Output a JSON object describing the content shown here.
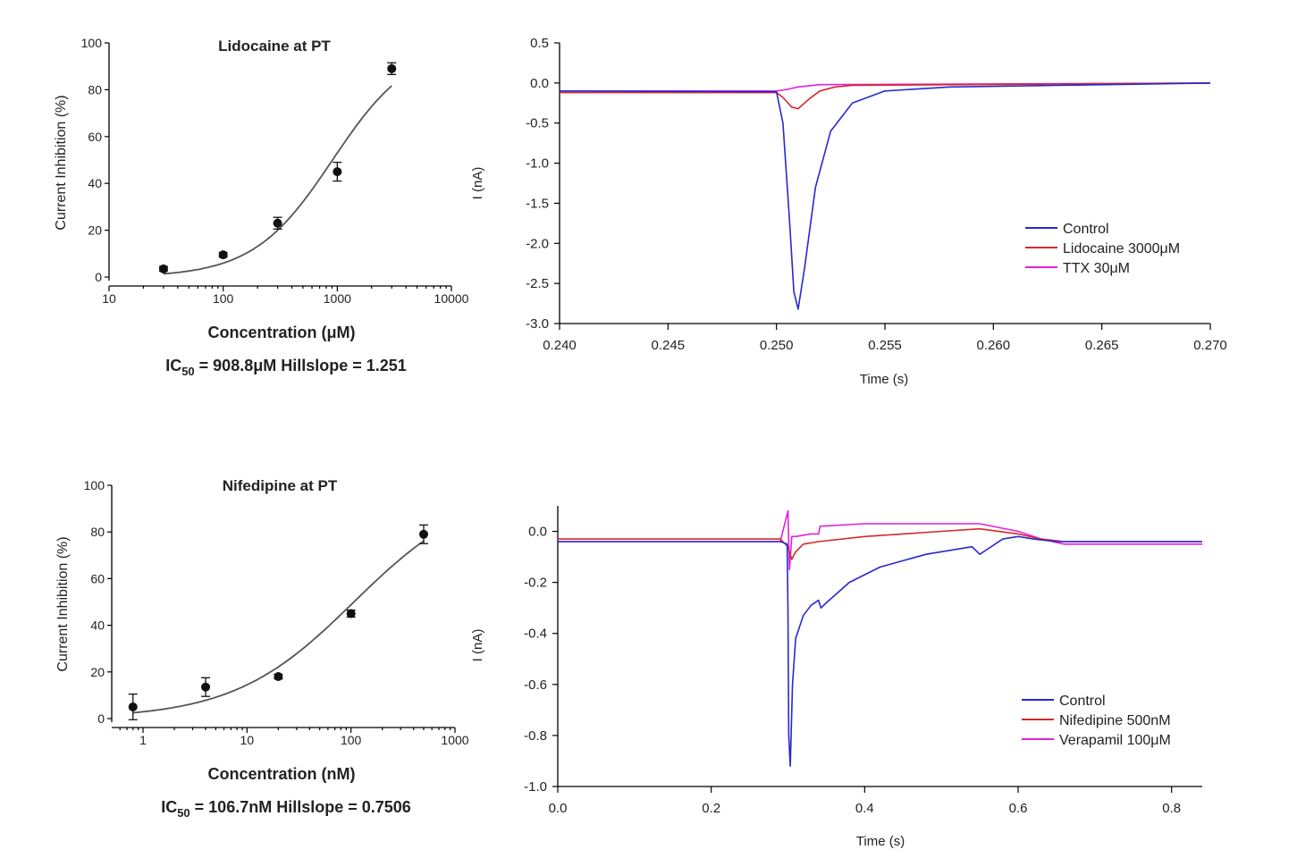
{
  "colors": {
    "control": "#2828d0",
    "red": "#d42a2a",
    "magenta": "#e020e0",
    "fit": "#555555",
    "point": "#111111"
  },
  "chart_data": [
    {
      "type": "scatter",
      "title": "Lidocaine at PT",
      "xlabel": "Concentration (μM)",
      "ylabel": "Current Inhibition (%)",
      "xscale": "log",
      "xlim": [
        10,
        10000
      ],
      "ylim": [
        0,
        100
      ],
      "xticks": [
        "10",
        "100",
        "1000",
        "10000"
      ],
      "yticks": [
        "0",
        "20",
        "40",
        "60",
        "80",
        "100"
      ],
      "points": [
        {
          "x": 30,
          "y": 3.5,
          "err": 1
        },
        {
          "x": 100,
          "y": 9.5,
          "err": 1
        },
        {
          "x": 300,
          "y": 23,
          "err": 2.5
        },
        {
          "x": 1000,
          "y": 45,
          "err": 4
        },
        {
          "x": 3000,
          "y": 89,
          "err": 2.5
        }
      ],
      "fit": {
        "ic50": 908.8,
        "hill": 1.251,
        "xmin": 30,
        "xmax": 3000
      },
      "annotation": {
        "ic": "IC",
        "sub": "50",
        "rest": " = 908.8μM  Hillslope = 1.251"
      }
    },
    {
      "type": "line",
      "xlabel": "Time (s)",
      "ylabel": "I (nA)",
      "xlim": [
        0.24,
        0.27
      ],
      "ylim": [
        -3.0,
        0.5
      ],
      "xticks": [
        "0.240",
        "0.245",
        "0.250",
        "0.255",
        "0.260",
        "0.265",
        "0.270"
      ],
      "yticks": [
        "0.5",
        "0.0",
        "-0.5",
        "-1.0",
        "-1.5",
        "-2.0",
        "-2.5",
        "-3.0"
      ],
      "series": [
        {
          "name": "Control",
          "color": "#2828d0",
          "x": [
            0.24,
            0.25,
            0.2503,
            0.2506,
            0.2508,
            0.251,
            0.2513,
            0.2518,
            0.2525,
            0.2535,
            0.255,
            0.258,
            0.27
          ],
          "y": [
            -0.1,
            -0.11,
            -0.5,
            -1.7,
            -2.6,
            -2.82,
            -2.3,
            -1.3,
            -0.6,
            -0.25,
            -0.1,
            -0.05,
            0.0
          ]
        },
        {
          "name": "Lidocaine 3000μM",
          "color": "#d42a2a",
          "x": [
            0.24,
            0.25,
            0.2503,
            0.2507,
            0.251,
            0.2515,
            0.252,
            0.2527,
            0.2535,
            0.27
          ],
          "y": [
            -0.12,
            -0.12,
            -0.18,
            -0.3,
            -0.32,
            -0.2,
            -0.1,
            -0.05,
            -0.03,
            0.0
          ]
        },
        {
          "name": "TTX 30μM",
          "color": "#e020e0",
          "x": [
            0.24,
            0.25,
            0.2505,
            0.251,
            0.252,
            0.27
          ],
          "y": [
            -0.1,
            -0.1,
            -0.08,
            -0.05,
            -0.02,
            0.0
          ]
        }
      ]
    },
    {
      "type": "scatter",
      "title": "Nifedipine at PT",
      "xlabel": "Concentration (nM)",
      "ylabel": "Current Inhibition (%)",
      "xscale": "log",
      "xlim": [
        0.5,
        1000
      ],
      "ylim": [
        0,
        100
      ],
      "xticks": [
        "1",
        "10",
        "100",
        "1000"
      ],
      "yticks": [
        "0",
        "20",
        "40",
        "60",
        "80",
        "100"
      ],
      "points": [
        {
          "x": 0.8,
          "y": 5,
          "err": 5.5
        },
        {
          "x": 4,
          "y": 13.5,
          "err": 4
        },
        {
          "x": 20,
          "y": 18,
          "err": 1
        },
        {
          "x": 100,
          "y": 45,
          "err": 1.5
        },
        {
          "x": 500,
          "y": 79,
          "err": 4
        }
      ],
      "fit": {
        "ic50": 106.7,
        "hill": 0.7506,
        "xmin": 0.8,
        "xmax": 500
      },
      "annotation": {
        "ic": "IC",
        "sub": "50",
        "rest": " = 106.7nM  Hillslope = 0.7506"
      }
    },
    {
      "type": "line",
      "xlabel": "Time (s)",
      "ylabel": "I (nA)",
      "xlim": [
        0.0,
        0.84
      ],
      "ylim": [
        -1.0,
        0.1
      ],
      "xticks": [
        "0.0",
        "0.2",
        "0.4",
        "0.6",
        "0.8"
      ],
      "yticks": [
        "0.0",
        "-0.2",
        "-0.4",
        "-0.6",
        "-0.8",
        "-1.0"
      ],
      "series": [
        {
          "name": "Control",
          "color": "#2828d0",
          "x": [
            0.0,
            0.29,
            0.299,
            0.3,
            0.301,
            0.303,
            0.306,
            0.31,
            0.32,
            0.33,
            0.34,
            0.343,
            0.35,
            0.38,
            0.42,
            0.48,
            0.54,
            0.55,
            0.56,
            0.58,
            0.6,
            0.62,
            0.65,
            0.7,
            0.84
          ],
          "y": [
            -0.04,
            -0.04,
            -0.05,
            -0.3,
            -0.8,
            -0.92,
            -0.6,
            -0.42,
            -0.33,
            -0.29,
            -0.27,
            -0.3,
            -0.28,
            -0.2,
            -0.14,
            -0.09,
            -0.06,
            -0.09,
            -0.07,
            -0.03,
            -0.02,
            -0.03,
            -0.04,
            -0.04,
            -0.04
          ]
        },
        {
          "name": "Nifedipine 500nM",
          "color": "#d42a2a",
          "x": [
            0.0,
            0.29,
            0.3,
            0.305,
            0.31,
            0.32,
            0.34,
            0.4,
            0.5,
            0.55,
            0.6,
            0.63,
            0.66,
            0.84
          ],
          "y": [
            -0.03,
            -0.03,
            -0.06,
            -0.11,
            -0.08,
            -0.05,
            -0.04,
            -0.02,
            0.0,
            0.01,
            -0.01,
            -0.03,
            -0.04,
            -0.04
          ]
        },
        {
          "name": "Verapamil 100μM",
          "color": "#e020e0",
          "x": [
            0.0,
            0.29,
            0.3,
            0.302,
            0.305,
            0.31,
            0.33,
            0.34,
            0.342,
            0.4,
            0.5,
            0.55,
            0.6,
            0.63,
            0.66,
            0.84
          ],
          "y": [
            -0.04,
            -0.04,
            0.08,
            -0.15,
            -0.02,
            -0.02,
            -0.01,
            -0.01,
            0.02,
            0.03,
            0.03,
            0.03,
            0.0,
            -0.03,
            -0.05,
            -0.05
          ]
        }
      ]
    }
  ]
}
